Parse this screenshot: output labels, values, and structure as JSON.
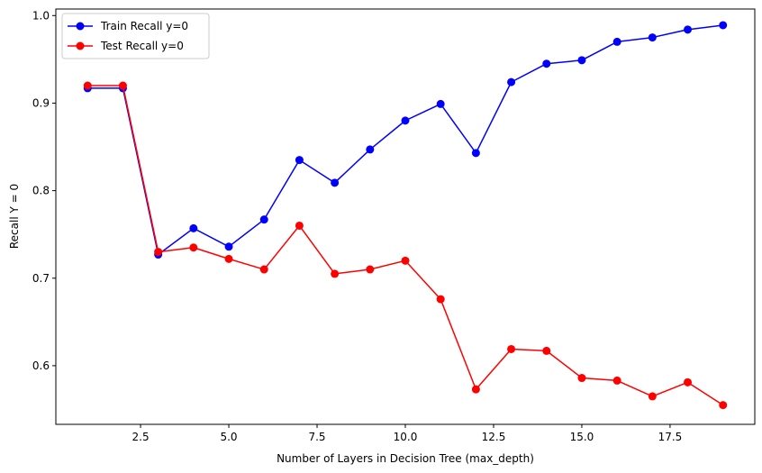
{
  "chart_data": {
    "type": "line",
    "title": "",
    "xlabel": "Number of Layers in Decision Tree (max_depth)",
    "ylabel": "Recall Y = 0",
    "xlim": [
      0.1,
      19.9
    ],
    "ylim": [
      0.533,
      1.0075
    ],
    "x_ticks": [
      2.5,
      5.0,
      7.5,
      10.0,
      12.5,
      15.0,
      17.5
    ],
    "x_tick_labels": [
      "2.5",
      "5.0",
      "7.5",
      "10.0",
      "12.5",
      "15.0",
      "17.5"
    ],
    "y_ticks": [
      0.6,
      0.7,
      0.8,
      0.9,
      1.0
    ],
    "y_tick_labels": [
      "0.6",
      "0.7",
      "0.8",
      "0.9",
      "1.0"
    ],
    "grid": false,
    "legend_position": "upper-left",
    "x": [
      1,
      2,
      3,
      4,
      5,
      6,
      7,
      8,
      9,
      10,
      11,
      12,
      13,
      14,
      15,
      16,
      17,
      18,
      19
    ],
    "series": [
      {
        "name": "Train Recall y=0",
        "color": "#0000ff",
        "values": [
          0.917,
          0.917,
          0.727,
          0.757,
          0.736,
          0.767,
          0.835,
          0.809,
          0.847,
          0.88,
          0.899,
          0.843,
          0.924,
          0.945,
          0.949,
          0.97,
          0.975,
          0.984,
          0.989
        ]
      },
      {
        "name": "Test Recall y=0",
        "color": "#ff0000",
        "values": [
          0.92,
          0.92,
          0.73,
          0.735,
          0.722,
          0.71,
          0.76,
          0.705,
          0.71,
          0.72,
          0.676,
          0.573,
          0.619,
          0.617,
          0.586,
          0.583,
          0.565,
          0.581,
          0.555
        ]
      }
    ]
  }
}
